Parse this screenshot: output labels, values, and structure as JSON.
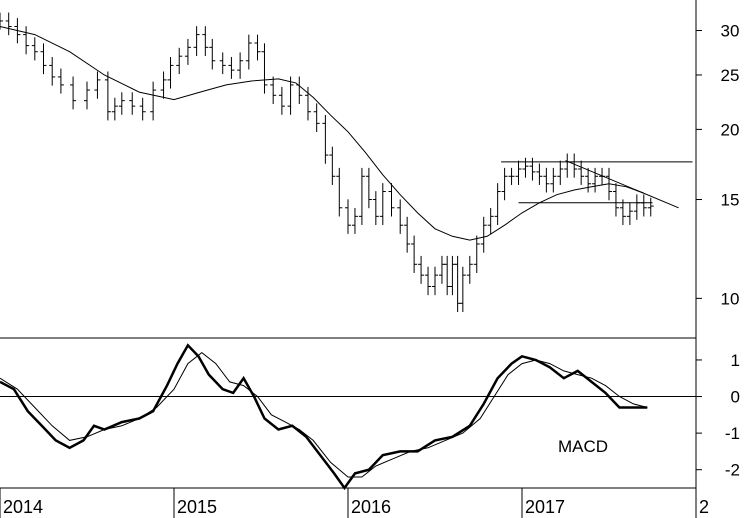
{
  "chart_data": [
    {
      "type": "line",
      "subtype": "ohlc-bars-with-moving-average",
      "scale": "log",
      "ylim": [
        8.5,
        34
      ],
      "y_ticks": [
        "30",
        "25",
        "20",
        "15",
        "10"
      ],
      "y_tick_values": [
        30,
        25,
        20,
        15,
        10
      ],
      "x_ticks": [
        "2014",
        "2015",
        "2016",
        "2017",
        "2"
      ],
      "x_tick_values": [
        2014.0,
        2015.0,
        2016.0,
        2017.0,
        2018.0
      ],
      "xlim": [
        2014.0,
        2018.0
      ],
      "price_series": [
        [
          2014.0,
          31.2
        ],
        [
          2014.05,
          30.5
        ],
        [
          2014.1,
          29.5
        ],
        [
          2014.15,
          28.2
        ],
        [
          2014.2,
          27.5
        ],
        [
          2014.25,
          26.0
        ],
        [
          2014.3,
          24.8
        ],
        [
          2014.35,
          24.0
        ],
        [
          2014.42,
          22.5
        ],
        [
          2014.5,
          23.5
        ],
        [
          2014.56,
          24.5
        ],
        [
          2014.62,
          21.5
        ],
        [
          2014.66,
          22.0
        ],
        [
          2014.7,
          22.5
        ],
        [
          2014.76,
          22.0
        ],
        [
          2014.82,
          21.5
        ],
        [
          2014.88,
          23.5
        ],
        [
          2014.94,
          24.5
        ],
        [
          2014.98,
          26.0
        ],
        [
          2015.03,
          27.0
        ],
        [
          2015.08,
          28.0
        ],
        [
          2015.13,
          29.5
        ],
        [
          2015.18,
          28.0
        ],
        [
          2015.22,
          26.5
        ],
        [
          2015.28,
          26.0
        ],
        [
          2015.33,
          25.5
        ],
        [
          2015.38,
          26.5
        ],
        [
          2015.43,
          28.5
        ],
        [
          2015.48,
          27.5
        ],
        [
          2015.52,
          24.0
        ],
        [
          2015.57,
          23.0
        ],
        [
          2015.62,
          22.0
        ],
        [
          2015.67,
          24.0
        ],
        [
          2015.72,
          23.0
        ],
        [
          2015.77,
          21.5
        ],
        [
          2015.82,
          20.5
        ],
        [
          2015.87,
          18.0
        ],
        [
          2015.91,
          16.5
        ],
        [
          2015.95,
          14.5
        ],
        [
          2016.0,
          13.5
        ],
        [
          2016.04,
          14.0
        ],
        [
          2016.08,
          16.5
        ],
        [
          2016.12,
          15.0
        ],
        [
          2016.16,
          14.0
        ],
        [
          2016.2,
          15.5
        ],
        [
          2016.25,
          14.5
        ],
        [
          2016.3,
          13.5
        ],
        [
          2016.34,
          12.5
        ],
        [
          2016.38,
          11.5
        ],
        [
          2016.42,
          11.0
        ],
        [
          2016.46,
          10.5
        ],
        [
          2016.5,
          11.0
        ],
        [
          2016.54,
          11.5
        ],
        [
          2016.57,
          10.5
        ],
        [
          2016.6,
          11.5
        ],
        [
          2016.63,
          9.8
        ],
        [
          2016.66,
          11.0
        ],
        [
          2016.7,
          11.5
        ],
        [
          2016.74,
          12.5
        ],
        [
          2016.78,
          13.5
        ],
        [
          2016.82,
          14.0
        ],
        [
          2016.86,
          15.5
        ],
        [
          2016.9,
          16.5
        ],
        [
          2016.94,
          16.5
        ],
        [
          2016.98,
          17.0
        ],
        [
          2017.02,
          17.2
        ],
        [
          2017.06,
          16.8
        ],
        [
          2017.1,
          16.5
        ],
        [
          2017.14,
          16.0
        ],
        [
          2017.18,
          16.5
        ],
        [
          2017.22,
          17.0
        ],
        [
          2017.26,
          17.5
        ],
        [
          2017.3,
          17.0
        ],
        [
          2017.34,
          16.5
        ],
        [
          2017.38,
          16.0
        ],
        [
          2017.42,
          16.5
        ],
        [
          2017.46,
          16.5
        ],
        [
          2017.5,
          15.5
        ],
        [
          2017.54,
          14.5
        ],
        [
          2017.58,
          14.0
        ],
        [
          2017.62,
          14.3
        ],
        [
          2017.66,
          14.8
        ],
        [
          2017.7,
          14.5
        ],
        [
          2017.74,
          14.6
        ]
      ],
      "moving_average": [
        [
          2014.0,
          30.5
        ],
        [
          2014.2,
          29.5
        ],
        [
          2014.4,
          27.5
        ],
        [
          2014.6,
          25.0
        ],
        [
          2014.8,
          23.3
        ],
        [
          2015.0,
          22.6
        ],
        [
          2015.15,
          23.3
        ],
        [
          2015.3,
          24.0
        ],
        [
          2015.45,
          24.4
        ],
        [
          2015.6,
          24.6
        ],
        [
          2015.7,
          24.2
        ],
        [
          2015.8,
          22.8
        ],
        [
          2015.9,
          21.2
        ],
        [
          2016.0,
          19.8
        ],
        [
          2016.1,
          18.2
        ],
        [
          2016.2,
          16.6
        ],
        [
          2016.3,
          15.3
        ],
        [
          2016.4,
          14.2
        ],
        [
          2016.5,
          13.3
        ],
        [
          2016.6,
          12.9
        ],
        [
          2016.7,
          12.7
        ],
        [
          2016.8,
          12.9
        ],
        [
          2016.9,
          13.5
        ],
        [
          2017.0,
          14.2
        ],
        [
          2017.1,
          14.8
        ],
        [
          2017.2,
          15.3
        ],
        [
          2017.3,
          15.6
        ],
        [
          2017.4,
          15.8
        ],
        [
          2017.5,
          16.0
        ],
        [
          2017.6,
          15.8
        ],
        [
          2017.7,
          15.4
        ]
      ],
      "annotations": [
        {
          "type": "horizontal-line",
          "y": 17.5,
          "x_range": [
            2016.88,
            2017.98
          ]
        },
        {
          "type": "horizontal-line",
          "y": 14.8,
          "x_range": [
            2016.98,
            2017.75
          ]
        },
        {
          "type": "trendline",
          "from": [
            2017.25,
            17.6
          ],
          "to": [
            2017.9,
            14.5
          ]
        }
      ]
    },
    {
      "type": "line",
      "subtype": "macd-indicator",
      "annotation_label": "MACD",
      "ylim": [
        -2.5,
        1.6
      ],
      "y_ticks": [
        "1",
        "0",
        "-1",
        "-2"
      ],
      "y_tick_values": [
        1,
        0,
        -1,
        -2
      ],
      "zero_line": 0,
      "series": [
        {
          "values": [
            [
              2014.0,
              0.4
            ],
            [
              2014.08,
              0.2
            ],
            [
              2014.16,
              -0.4
            ],
            [
              2014.24,
              -0.8
            ],
            [
              2014.32,
              -1.2
            ],
            [
              2014.4,
              -1.4
            ],
            [
              2014.48,
              -1.2
            ],
            [
              2014.54,
              -0.8
            ],
            [
              2014.6,
              -0.9
            ],
            [
              2014.7,
              -0.7
            ],
            [
              2014.8,
              -0.6
            ],
            [
              2014.88,
              -0.4
            ],
            [
              2014.96,
              0.3
            ],
            [
              2015.02,
              0.9
            ],
            [
              2015.08,
              1.4
            ],
            [
              2015.14,
              1.1
            ],
            [
              2015.2,
              0.6
            ],
            [
              2015.28,
              0.2
            ],
            [
              2015.34,
              0.1
            ],
            [
              2015.4,
              0.5
            ],
            [
              2015.46,
              0.0
            ],
            [
              2015.52,
              -0.6
            ],
            [
              2015.6,
              -0.9
            ],
            [
              2015.68,
              -0.8
            ],
            [
              2015.76,
              -1.1
            ],
            [
              2015.84,
              -1.6
            ],
            [
              2015.92,
              -2.1
            ],
            [
              2015.98,
              -2.5
            ],
            [
              2016.04,
              -2.1
            ],
            [
              2016.12,
              -2.0
            ],
            [
              2016.2,
              -1.6
            ],
            [
              2016.3,
              -1.5
            ],
            [
              2016.4,
              -1.5
            ],
            [
              2016.5,
              -1.2
            ],
            [
              2016.6,
              -1.1
            ],
            [
              2016.7,
              -0.8
            ],
            [
              2016.78,
              -0.2
            ],
            [
              2016.86,
              0.5
            ],
            [
              2016.94,
              0.9
            ],
            [
              2017.0,
              1.1
            ],
            [
              2017.08,
              1.0
            ],
            [
              2017.16,
              0.8
            ],
            [
              2017.24,
              0.5
            ],
            [
              2017.32,
              0.7
            ],
            [
              2017.4,
              0.4
            ],
            [
              2017.48,
              0.1
            ],
            [
              2017.56,
              -0.3
            ],
            [
              2017.64,
              -0.3
            ],
            [
              2017.72,
              -0.3
            ]
          ]
        },
        {
          "values": [
            [
              2014.0,
              0.5
            ],
            [
              2014.1,
              0.2
            ],
            [
              2014.2,
              -0.3
            ],
            [
              2014.3,
              -0.8
            ],
            [
              2014.4,
              -1.2
            ],
            [
              2014.5,
              -1.1
            ],
            [
              2014.6,
              -0.9
            ],
            [
              2014.7,
              -0.8
            ],
            [
              2014.8,
              -0.6
            ],
            [
              2014.9,
              -0.3
            ],
            [
              2015.0,
              0.2
            ],
            [
              2015.08,
              0.9
            ],
            [
              2015.16,
              1.2
            ],
            [
              2015.24,
              0.9
            ],
            [
              2015.32,
              0.4
            ],
            [
              2015.4,
              0.3
            ],
            [
              2015.48,
              0.0
            ],
            [
              2015.56,
              -0.5
            ],
            [
              2015.64,
              -0.7
            ],
            [
              2015.72,
              -0.9
            ],
            [
              2015.8,
              -1.2
            ],
            [
              2015.9,
              -1.8
            ],
            [
              2016.0,
              -2.2
            ],
            [
              2016.08,
              -2.2
            ],
            [
              2016.16,
              -1.9
            ],
            [
              2016.26,
              -1.7
            ],
            [
              2016.36,
              -1.5
            ],
            [
              2016.46,
              -1.4
            ],
            [
              2016.56,
              -1.2
            ],
            [
              2016.66,
              -1.0
            ],
            [
              2016.76,
              -0.6
            ],
            [
              2016.84,
              0.0
            ],
            [
              2016.92,
              0.6
            ],
            [
              2017.0,
              0.9
            ],
            [
              2017.08,
              1.0
            ],
            [
              2017.16,
              0.9
            ],
            [
              2017.24,
              0.7
            ],
            [
              2017.32,
              0.6
            ],
            [
              2017.4,
              0.5
            ],
            [
              2017.48,
              0.3
            ],
            [
              2017.56,
              0.0
            ],
            [
              2017.64,
              -0.2
            ],
            [
              2017.72,
              -0.3
            ]
          ]
        }
      ]
    }
  ]
}
